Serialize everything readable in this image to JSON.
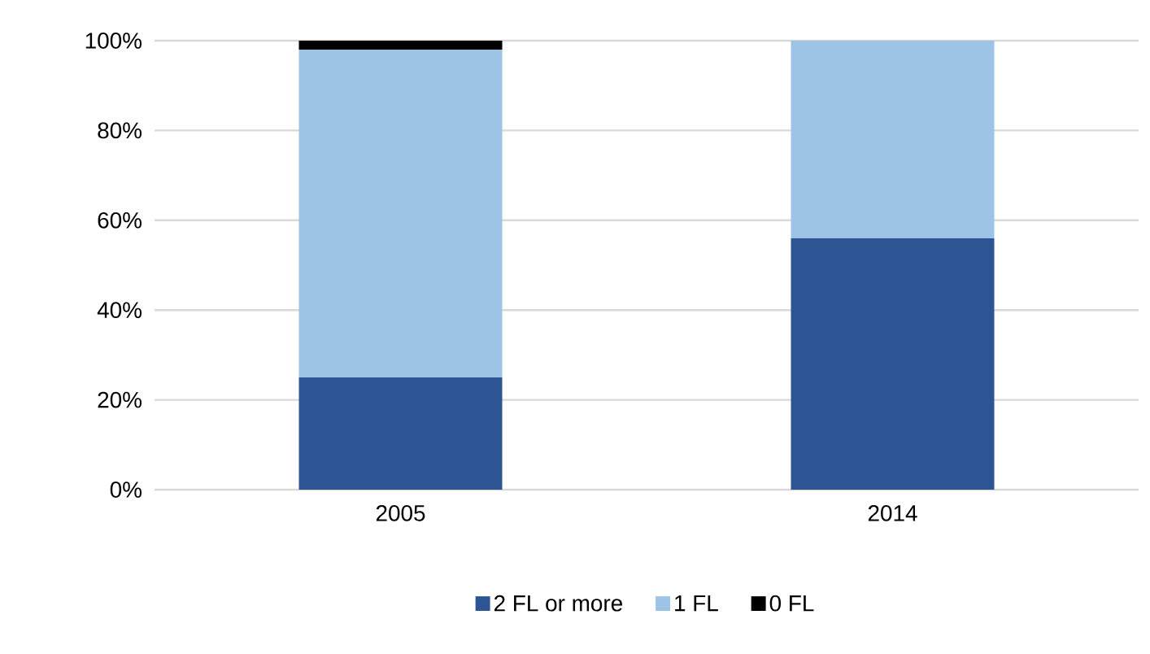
{
  "chart_data": {
    "type": "bar",
    "stacked": true,
    "categories": [
      "2005",
      "2014"
    ],
    "series": [
      {
        "name": "2 FL or more",
        "color": "#2e5593",
        "values": [
          25,
          56
        ]
      },
      {
        "name": "1 FL",
        "color": "#9dc3e6",
        "values": [
          73,
          44
        ]
      },
      {
        "name": "0 FL",
        "color": "#000000",
        "values": [
          2,
          0
        ]
      }
    ],
    "ylim": [
      0,
      100
    ],
    "yticks": [
      {
        "value": 0,
        "label": "0%"
      },
      {
        "value": 20,
        "label": "20%"
      },
      {
        "value": 40,
        "label": "40%"
      },
      {
        "value": 60,
        "label": "60%"
      },
      {
        "value": 80,
        "label": "80%"
      },
      {
        "value": 100,
        "label": "100%"
      }
    ],
    "grid": "y",
    "legend": "bottom"
  }
}
